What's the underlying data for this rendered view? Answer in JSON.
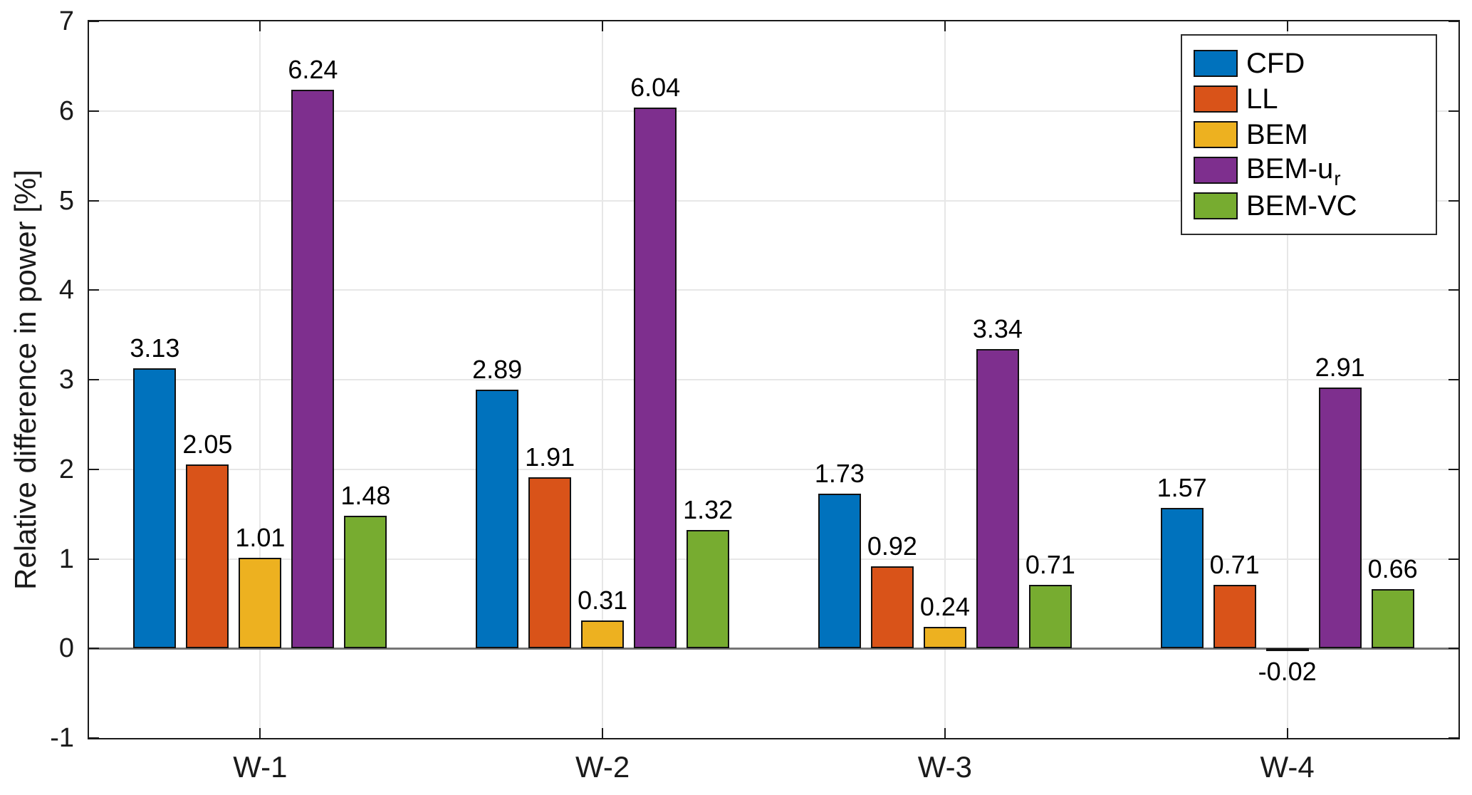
{
  "chart_data": {
    "type": "bar",
    "title": "",
    "xlabel": "",
    "ylabel": "Relative difference in power [%]",
    "categories": [
      "W-1",
      "W-2",
      "W-3",
      "W-4"
    ],
    "series": [
      {
        "name": "CFD",
        "color": "#0072BD",
        "values": [
          3.13,
          2.89,
          1.73,
          1.57
        ]
      },
      {
        "name": "LL",
        "color": "#D95319",
        "values": [
          2.05,
          1.91,
          0.92,
          0.71
        ]
      },
      {
        "name": "BEM",
        "color": "#EDB120",
        "values": [
          1.01,
          0.31,
          0.24,
          -0.02
        ]
      },
      {
        "name": "BEM-u",
        "name_subscript": "r",
        "color": "#7E2F8E",
        "values": [
          6.24,
          6.04,
          3.34,
          2.91
        ]
      },
      {
        "name": "BEM-VC",
        "color": "#77AC30",
        "values": [
          1.48,
          1.32,
          0.71,
          0.66
        ]
      }
    ],
    "bar_value_labels": [
      [
        "3.13",
        "2.89",
        "1.73",
        "1.57"
      ],
      [
        "2.05",
        "1.91",
        "0.92",
        "0.71"
      ],
      [
        "1.01",
        "0.31",
        "0.24",
        "-0.02"
      ],
      [
        "6.24",
        "6.04",
        "3.34",
        "2.91"
      ],
      [
        "1.48",
        "1.32",
        "0.71",
        "0.66"
      ]
    ],
    "ylim": [
      -1,
      7
    ],
    "yticks": [
      -1,
      0,
      1,
      2,
      3,
      4,
      5,
      6,
      7
    ],
    "grid": true,
    "zero_line": true,
    "legend_position": "top-right",
    "axis_colors": {
      "grid": "#e7e7e7",
      "zero_line": "#757575",
      "box": "#1a1a1a"
    }
  }
}
